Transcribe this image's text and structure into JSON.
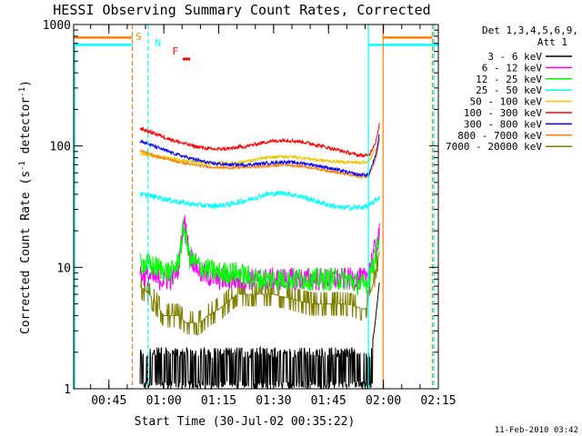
{
  "chart_data": {
    "type": "line",
    "title": "HESSI Observing Summary Count Rates, Corrected",
    "xlabel": "Start Time (30-Jul-02 00:35:22)",
    "ylabel_main": "Corrected Count Rate (s",
    "ylabel_sup1": "-1",
    "ylabel_mid": " detector",
    "ylabel_sup2": "-1",
    "ylabel_end": ")",
    "y_scale": "log",
    "ylim": [
      1,
      1000
    ],
    "xlim_minutes": [
      35.37,
      135
    ],
    "x_ticks": [
      {
        "label": "00:45",
        "value": 45
      },
      {
        "label": "01:00",
        "value": 60
      },
      {
        "label": "01:15",
        "value": 75
      },
      {
        "label": "01:30",
        "value": 90
      },
      {
        "label": "01:45",
        "value": 105
      },
      {
        "label": "02:00",
        "value": 120
      },
      {
        "label": "02:15",
        "value": 135
      }
    ],
    "y_ticks": [
      {
        "label": "1",
        "value": 1
      },
      {
        "label": "10",
        "value": 10
      },
      {
        "label": "100",
        "value": 100
      },
      {
        "label": "1000",
        "value": 1000
      }
    ],
    "legend_header": [
      "Det 1,3,4,5,6,9,",
      "Att 1"
    ],
    "legend_position": "right",
    "series": [
      {
        "name": "3 - 6 keV",
        "color": "#000000",
        "x": [
          53.5,
          57,
          62,
          66,
          69,
          75,
          80,
          85,
          90,
          95,
          100,
          103,
          115.8,
          117.5,
          119
        ],
        "y": [
          2.6,
          1.6,
          1.3,
          1.4,
          1.6,
          1.5,
          1.4,
          1.5,
          1.6,
          1.5,
          1.4,
          1.5,
          1.5,
          3,
          8
        ]
      },
      {
        "name": "6 - 12 keV",
        "color": "#ff00ff",
        "x": [
          53.5,
          58,
          62,
          64,
          65.5,
          67,
          70,
          75,
          80,
          85,
          90,
          95,
          100,
          105,
          110,
          115,
          117,
          119
        ],
        "y": [
          9,
          8,
          8,
          10,
          25,
          13,
          9,
          8,
          8,
          8,
          8,
          8,
          8,
          8,
          8,
          8,
          12,
          19
        ]
      },
      {
        "name": "12 - 25 keV",
        "color": "#00ff00",
        "x": [
          53.5,
          58,
          62,
          64,
          65.5,
          67,
          70,
          75,
          80,
          85,
          90,
          95,
          100,
          105,
          110,
          115,
          117,
          119
        ],
        "y": [
          11,
          10,
          9,
          11,
          22,
          12,
          10,
          9,
          9,
          8,
          8,
          8,
          8,
          8,
          8,
          7,
          10,
          18
        ]
      },
      {
        "name": "25 - 50 keV",
        "color": "#00ffff",
        "x": [
          53.5,
          58,
          63,
          68,
          73,
          78,
          83,
          88,
          93,
          98,
          103,
          108,
          113,
          116,
          119
        ],
        "y": [
          40,
          38,
          35,
          33,
          32,
          33,
          36,
          40,
          41,
          38,
          34,
          31,
          31,
          32,
          38
        ]
      },
      {
        "name": "50 - 100 keV",
        "color": "#e6c800",
        "x": [
          53.5,
          58,
          63,
          68,
          73,
          78,
          83,
          88,
          93,
          98,
          103,
          108,
          113,
          116,
          119
        ],
        "y": [
          86,
          82,
          78,
          74,
          72,
          72,
          75,
          80,
          82,
          80,
          76,
          74,
          73,
          74,
          110
        ]
      },
      {
        "name": "100 - 300 keV",
        "color": "#ff0000",
        "x": [
          53.5,
          58,
          63,
          68,
          73,
          78,
          83,
          88,
          93,
          98,
          103,
          108,
          113,
          116,
          118,
          119
        ],
        "y": [
          140,
          125,
          110,
          100,
          94,
          95,
          100,
          108,
          112,
          108,
          100,
          92,
          84,
          83,
          110,
          160
        ]
      },
      {
        "name": "300 - 800 keV",
        "color": "#0000ff",
        "x": [
          53.5,
          58,
          63,
          68,
          73,
          78,
          83,
          88,
          93,
          98,
          103,
          108,
          113,
          116,
          118,
          119
        ],
        "y": [
          110,
          98,
          86,
          78,
          72,
          70,
          70,
          72,
          74,
          72,
          68,
          63,
          58,
          58,
          85,
          130
        ]
      },
      {
        "name": "800 - 7000 keV",
        "color": "#ff8000",
        "x": [
          53.5,
          58,
          63,
          68,
          73,
          78,
          83,
          88,
          93,
          98,
          103,
          108,
          113,
          116,
          118,
          119
        ],
        "y": [
          92,
          82,
          75,
          70,
          67,
          66,
          67,
          68,
          70,
          68,
          64,
          60,
          56,
          56,
          80,
          120
        ]
      },
      {
        "name": "7000 - 20000 keV",
        "color": "#808000",
        "x": [
          53.5,
          56,
          58,
          60,
          62,
          64,
          66,
          68,
          70,
          72,
          75,
          80,
          85,
          90,
          95,
          100,
          105,
          110,
          115,
          117,
          119
        ],
        "y": [
          7,
          6,
          5,
          4,
          4,
          4,
          3.5,
          3.5,
          3.5,
          4,
          4.5,
          6,
          6,
          6,
          5.5,
          5,
          5,
          5,
          4.5,
          7,
          14
        ]
      }
    ],
    "annotations": [
      {
        "text": "S",
        "color": "#ff8000"
      },
      {
        "text": "N",
        "color": "#00ffff"
      },
      {
        "text": "F",
        "color": "#ff0000"
      }
    ],
    "flag_levels": {
      "orange_level": 780,
      "cyan_level": 680
    },
    "markers": [
      {
        "x": 51.4,
        "color": "#ff8000",
        "style": "dashed"
      },
      {
        "x": 55.7,
        "color": "#00ffff",
        "style": "dashed"
      },
      {
        "x": 115.9,
        "color": "#00ffff",
        "style": "solid"
      },
      {
        "x": 119.9,
        "color": "#ff8000",
        "style": "solid"
      },
      {
        "x": 133.8,
        "color": "#00ffff",
        "style": "dashed"
      },
      {
        "x": 133.4,
        "color": "#ff8000",
        "style": "dashed"
      }
    ],
    "grid": false
  },
  "footer": {
    "date_stamp": "11-Feb-2010 03:42"
  }
}
